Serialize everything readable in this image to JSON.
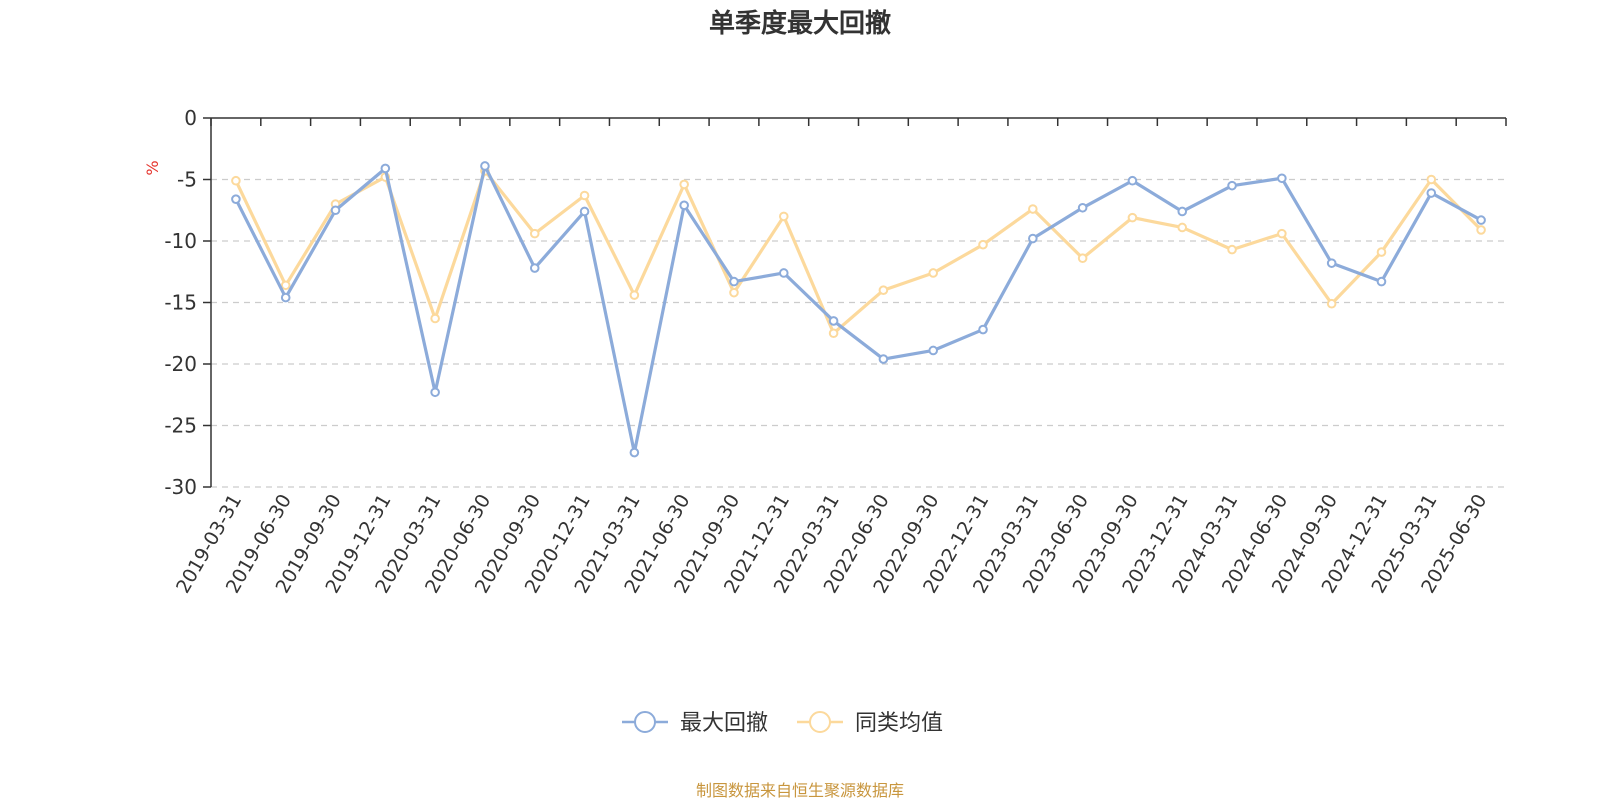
{
  "chart_data": {
    "type": "line",
    "title": "单季度最大回撤",
    "ylabel": "%",
    "ylim": [
      -30,
      0
    ],
    "yticks": [
      0,
      -5,
      -10,
      -15,
      -20,
      -25,
      -30
    ],
    "grid": true,
    "legend_position": "bottom-center",
    "categories": [
      "2019-03-31",
      "2019-06-30",
      "2019-09-30",
      "2019-12-31",
      "2020-03-31",
      "2020-06-30",
      "2020-09-30",
      "2020-12-31",
      "2021-03-31",
      "2021-06-30",
      "2021-09-30",
      "2021-12-31",
      "2022-03-31",
      "2022-06-30",
      "2022-09-30",
      "2022-12-31",
      "2023-03-31",
      "2023-06-30",
      "2023-09-30",
      "2023-12-31",
      "2024-03-31",
      "2024-06-30",
      "2024-09-30",
      "2024-12-31",
      "2025-03-31",
      "2025-06-30"
    ],
    "series": [
      {
        "name": "最大回撤",
        "color": "#8cabda",
        "values": [
          -6.6,
          -14.6,
          -7.5,
          -4.1,
          -22.3,
          -3.9,
          -12.2,
          -7.6,
          -27.2,
          -7.1,
          -13.3,
          -12.6,
          -16.5,
          -19.6,
          -18.9,
          -17.2,
          -9.8,
          -7.3,
          -5.1,
          -7.6,
          -5.5,
          -4.9,
          -11.8,
          -13.3,
          -6.1,
          -8.3
        ]
      },
      {
        "name": "同类均值",
        "color": "#fcd99c",
        "values": [
          -5.1,
          -13.6,
          -7.0,
          -4.8,
          -16.3,
          -4.3,
          -9.4,
          -6.3,
          -14.4,
          -5.4,
          -14.2,
          -8.0,
          -17.5,
          -14.0,
          -12.6,
          -10.3,
          -7.4,
          -11.4,
          -8.1,
          -8.9,
          -10.7,
          -9.4,
          -15.1,
          -10.9,
          -5.0,
          -9.1
        ]
      }
    ],
    "source_note": "制图数据来自恒生聚源数据库"
  }
}
